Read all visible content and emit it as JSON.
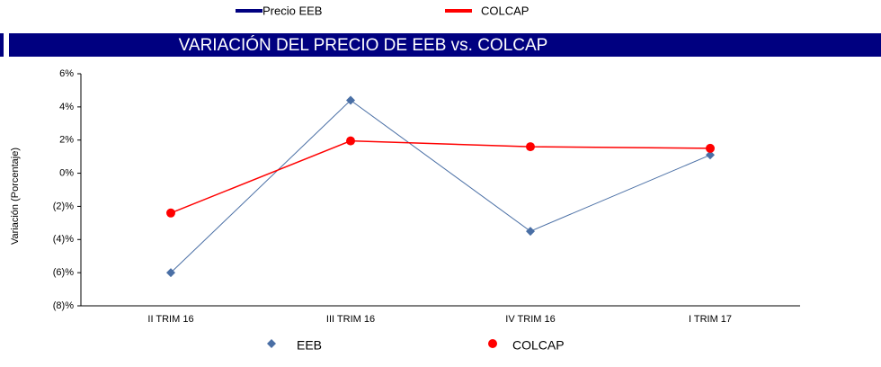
{
  "chart_data": {
    "type": "line",
    "title": "VARIACIÓN DEL PRECIO DE EEB vs. COLCAP",
    "y_label": "Variación (Porcentaje)",
    "top_legend": [
      {
        "label": "Precio EEB",
        "color": "#000080"
      },
      {
        "label": "COLCAP",
        "color": "#ff0000"
      }
    ],
    "categories": [
      "II TRIM 16",
      "III TRIM 16",
      "IV TRIM 16",
      "I TRIM 17"
    ],
    "series": [
      {
        "name": "EEB",
        "color": "#4a6fa5",
        "marker": "diamond",
        "values": [
          -6.0,
          4.4,
          -3.5,
          1.1
        ]
      },
      {
        "name": "COLCAP",
        "color": "#ff0000",
        "marker": "circle",
        "values": [
          -2.4,
          1.95,
          1.6,
          1.5
        ]
      }
    ],
    "ylim": [
      -8,
      6
    ],
    "yticks": [
      {
        "value": 6,
        "label": "6%"
      },
      {
        "value": 4,
        "label": "4%"
      },
      {
        "value": 2,
        "label": "2%"
      },
      {
        "value": 0,
        "label": "0%"
      },
      {
        "value": -2,
        "label": "(2)%"
      },
      {
        "value": -4,
        "label": "(4)%"
      },
      {
        "value": -6,
        "label": "(6)%"
      },
      {
        "value": -8,
        "label": "(8)%"
      }
    ],
    "grid": false
  }
}
